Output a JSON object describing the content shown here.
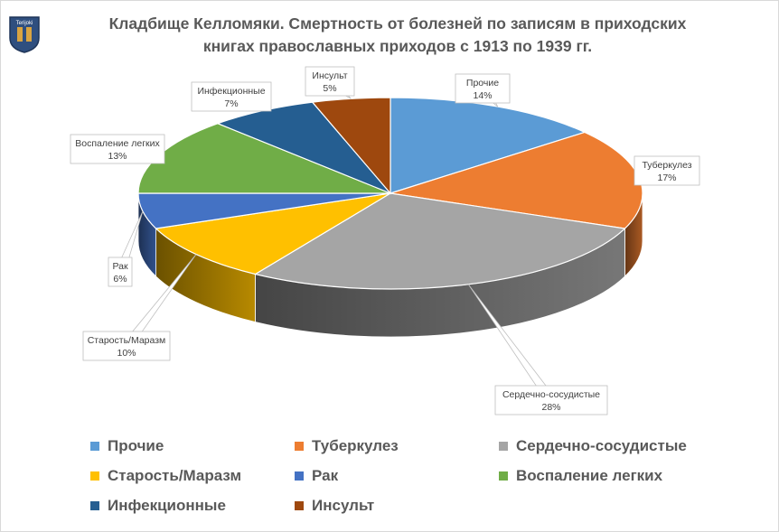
{
  "chart_data": {
    "type": "pie",
    "title_line1": "Кладбище Келломяки. Смертность от болезней по записям в приходских",
    "title_line2": "книгах православных  приходов с 1913 по 1939 гг.",
    "slices": [
      {
        "name": "Прочие",
        "value": 14,
        "label": "14%",
        "color": "#5b9bd5"
      },
      {
        "name": "Туберкулез",
        "value": 17,
        "label": "17%",
        "color": "#ed7d31"
      },
      {
        "name": "Сердечно-сосудистые",
        "value": 28,
        "label": "28%",
        "color": "#a5a5a5"
      },
      {
        "name": "Старость/Маразм",
        "value": 10,
        "label": "10%",
        "color": "#ffc000"
      },
      {
        "name": "Рак",
        "value": 6,
        "label": "6%",
        "color": "#4472c4"
      },
      {
        "name": "Воспаление легких",
        "value": 13,
        "label": "13%",
        "color": "#70ad47"
      },
      {
        "name": "Инфекционные",
        "value": 7,
        "label": "7%",
        "color": "#255e91"
      },
      {
        "name": "Инсульт",
        "value": 5,
        "label": "5%",
        "color": "#9e480e"
      }
    ],
    "legend_position": "bottom",
    "style": "3d-pie"
  },
  "logo_text": "Terijoki"
}
